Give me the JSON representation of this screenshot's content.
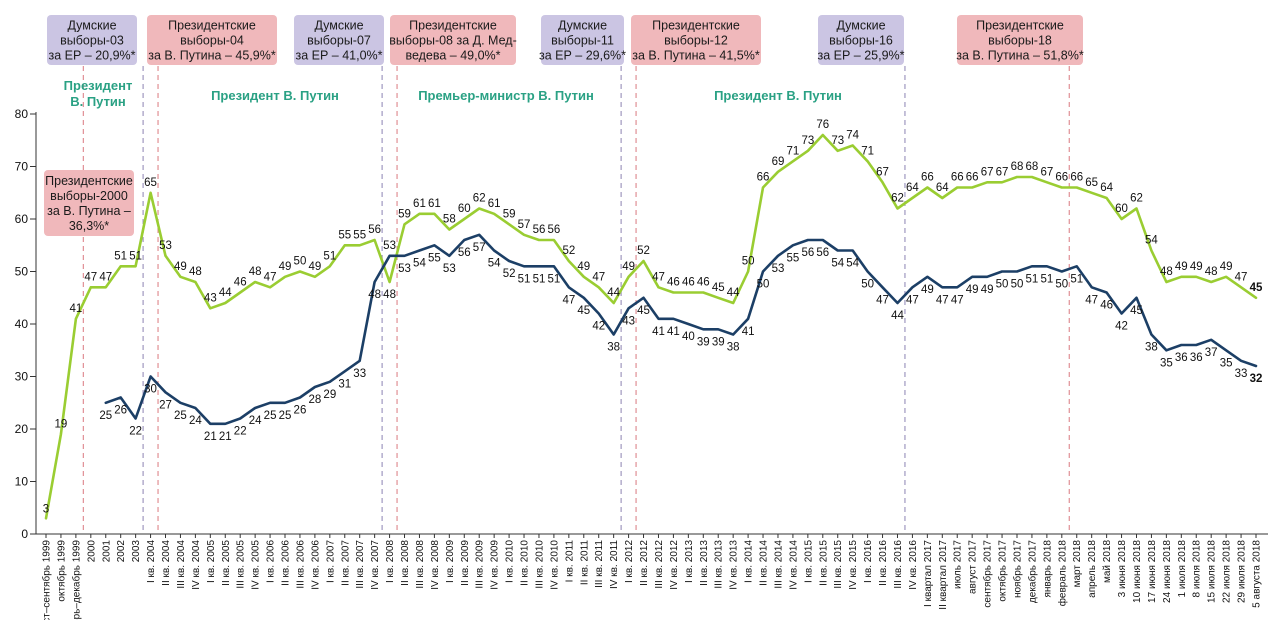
{
  "chart_data": {
    "type": "line",
    "ylim": [
      0,
      80
    ],
    "yticks": [
      0,
      10,
      20,
      30,
      40,
      50,
      60,
      70,
      80
    ],
    "categories": [
      "август–сентябрь 1999",
      "октябрь 1999",
      "ноябрь–декабрь 1999",
      "2000",
      "2001",
      "2002",
      "2003",
      "I кв. 2004",
      "II кв. 2004",
      "III кв. 2004",
      "IV кв. 2004",
      "I кв. 2005",
      "II кв. 2005",
      "III кв. 2005",
      "IV кв. 2005",
      "I кв. 2006",
      "II кв. 2006",
      "III кв. 2006",
      "IV кв. 2006",
      "I кв. 2007",
      "II кв. 2007",
      "III кв. 2007",
      "IV кв. 2007",
      "I кв. 2008",
      "II кв. 2008",
      "III кв. 2008",
      "IV кв. 2008",
      "I кв. 2009",
      "II кв. 2009",
      "III кв. 2009",
      "IV кв. 2009",
      "I кв. 2010",
      "II кв. 2010",
      "III кв. 2010",
      "IV кв. 2010",
      "I кв. 2011",
      "II кв. 2011",
      "III кв. 2011",
      "IV кв. 2011",
      "I кв. 2012",
      "II кв. 2012",
      "III кв. 2012",
      "IV кв. 2012",
      "I кв. 2013",
      "II кв. 2013",
      "III кв. 2013",
      "IV кв. 2013",
      "I кв. 2014",
      "II кв. 2014",
      "III кв. 2014",
      "IV кв. 2014",
      "I кв. 2015",
      "II кв. 2015",
      "III кв. 2015",
      "IV кв. 2015",
      "I кв. 2016",
      "II кв. 2016",
      "III кв. 2016",
      "IV кв. 2016",
      "I квартал 2017",
      "II квартал 2017",
      "июль 2017",
      "август 2017",
      "сентябрь 2017",
      "октябрь 2017",
      "ноябрь 2017",
      "декабрь 2017",
      "январь 2018",
      "февраль 2018",
      "март 2018",
      "апрель 2018",
      "май 2018",
      "3 июня 2018",
      "10 июня 2018",
      "17 июня 2018",
      "24 июня 2018",
      "1 июля 2018",
      "8 июля 2018",
      "15 июля 2018",
      "22 июля 2018",
      "29 июля 2018",
      "5 августа 2018"
    ],
    "series": [
      {
        "color": "#9acd32",
        "values": [
          3,
          19,
          41,
          47,
          47,
          51,
          51,
          65,
          53,
          49,
          48,
          43,
          44,
          46,
          48,
          47,
          49,
          50,
          49,
          51,
          55,
          55,
          56,
          48,
          59,
          61,
          61,
          58,
          60,
          62,
          61,
          59,
          57,
          56,
          56,
          52,
          49,
          47,
          44,
          49,
          52,
          47,
          46,
          46,
          46,
          45,
          44,
          50,
          66,
          69,
          71,
          73,
          76,
          73,
          74,
          71,
          67,
          62,
          64,
          66,
          64,
          66,
          66,
          67,
          67,
          68,
          68,
          67,
          66,
          66,
          65,
          64,
          60,
          62,
          54,
          48,
          49,
          49,
          48,
          49,
          47,
          45
        ]
      },
      {
        "color": "#1c3f66",
        "values": [
          null,
          null,
          null,
          null,
          25,
          26,
          22,
          30,
          27,
          25,
          24,
          21,
          21,
          22,
          24,
          25,
          25,
          26,
          28,
          29,
          31,
          33,
          48,
          53,
          53,
          54,
          55,
          53,
          56,
          57,
          54,
          52,
          51,
          51,
          51,
          47,
          45,
          42,
          38,
          43,
          45,
          41,
          41,
          40,
          39,
          39,
          38,
          41,
          50,
          53,
          55,
          56,
          56,
          54,
          54,
          50,
          47,
          44,
          47,
          49,
          47,
          47,
          49,
          49,
          50,
          50,
          51,
          51,
          50,
          51,
          47,
          46,
          42,
          45,
          38,
          35,
          36,
          36,
          37,
          35,
          33,
          32
        ]
      }
    ],
    "elections": [
      {
        "index": 2.5,
        "color": "pink",
        "lines": [
          "Президентские",
          "выборы-2000",
          "за В. Путина –",
          "36,3%*"
        ]
      },
      {
        "index": 6.5,
        "color": "purple",
        "lines": [
          "Думские",
          "выборы-03",
          "за ЕР – 20,9%*"
        ]
      },
      {
        "index": 7.5,
        "color": "pink",
        "lines": [
          "Президентские",
          "выборы-04",
          "за В. Путина – 45,9%*"
        ]
      },
      {
        "index": 22.5,
        "color": "purple",
        "lines": [
          "Думские",
          "выборы-07",
          "за ЕР – 41,0%*"
        ]
      },
      {
        "index": 23.5,
        "color": "pink",
        "lines": [
          "Президентские",
          "выборы-08 за Д. Мед-",
          "ведева – 49,0%*"
        ]
      },
      {
        "index": 38.5,
        "color": "purple",
        "lines": [
          "Думские",
          "выборы-11",
          "за ЕР – 29,6%*"
        ]
      },
      {
        "index": 39.5,
        "color": "pink",
        "lines": [
          "Президентские",
          "выборы-12",
          "за В. Путина – 41,5%*"
        ]
      },
      {
        "index": 57.5,
        "color": "purple",
        "lines": [
          "Думские",
          "выборы-16",
          "за ЕР – 25,9%*"
        ]
      },
      {
        "index": 68.5,
        "color": "pink",
        "lines": [
          "Президентские",
          "выборы-18",
          "за В. Путина – 51,8%*"
        ]
      }
    ],
    "periods": [
      {
        "lines": [
          "Президент",
          "В. Путин"
        ]
      },
      {
        "lines": [
          "Президент В. Путин"
        ]
      },
      {
        "lines": [
          "Премьер-министр В. Путин"
        ]
      },
      {
        "lines": [
          "Президент В. Путин"
        ]
      }
    ]
  }
}
